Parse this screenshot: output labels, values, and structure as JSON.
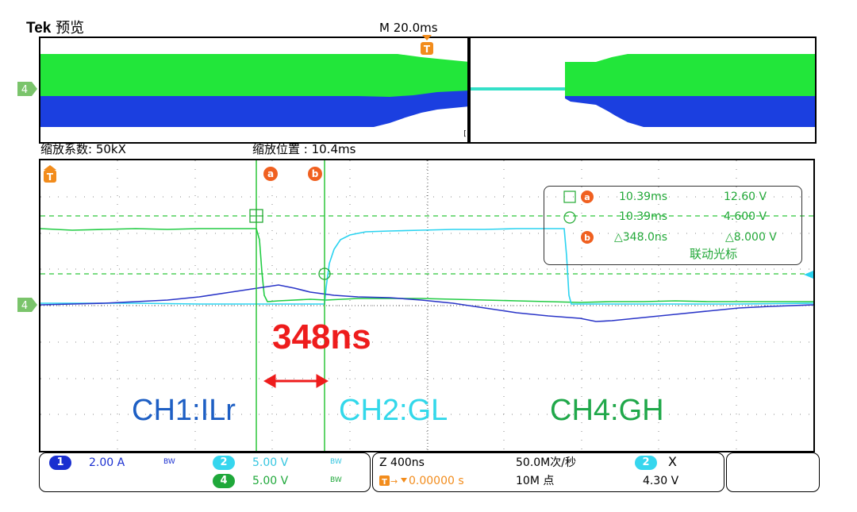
{
  "header": {
    "brand": "Tek",
    "mode": "预览",
    "timebase_main": "M 20.0ms",
    "zoom_factor": "缩放系数: 50kX",
    "zoom_position": "缩放位置 : 10.4ms"
  },
  "markers": {
    "trigger": "T",
    "cursor_a": "a",
    "cursor_b": "b",
    "channel_ref": "4",
    "zoom_bracket": "[]"
  },
  "cursor_readout": {
    "row1_time": "10.39ms",
    "row1_value": "12.60 V",
    "row2_time": "10.39ms",
    "row2_value": "4.600 V",
    "row3_delta_time": "△348.0ns",
    "row3_delta_value": "△8.000 V",
    "linked": "联动光标"
  },
  "annotations": {
    "delay": "348ns",
    "ch1": "CH1:ILr",
    "ch2": "CH2:GL",
    "ch4": "CH4:GH"
  },
  "status": {
    "ch1_num": "1",
    "ch1_scale": "2.00 A",
    "bw": "BW",
    "ch2_num": "2",
    "ch2_scale": "5.00 V",
    "ch4_num": "4",
    "ch4_scale": "5.00 V",
    "zoom_time": "Z 400ns",
    "trigger_pos": "0.00000 s",
    "sample_rate": "50.0M次/秒",
    "record_len": "10M 点",
    "trig_src": "2",
    "trig_slope": "X",
    "trig_level": "4.30 V"
  },
  "colors": {
    "ch1": "#1f3fd4",
    "ch2": "#33dff0",
    "ch4": "#22cc44",
    "ch4_label": "#20a84a",
    "ch1_label": "#1e5fc4",
    "trigger": "#f28c1c",
    "delay": "#ee1c1c"
  }
}
